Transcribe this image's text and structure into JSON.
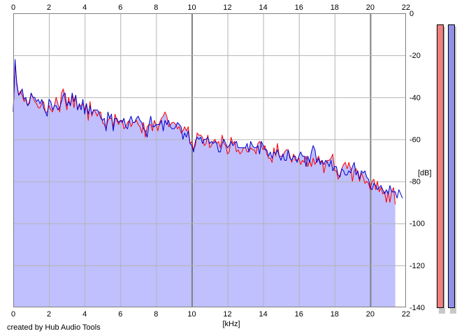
{
  "credit_text": "created by Hub Audio Tools",
  "chart_data": {
    "type": "line",
    "xlabel": "[kHz]",
    "ylabel": "[dB]",
    "xlim": [
      0,
      22
    ],
    "ylim": [
      -140,
      0
    ],
    "x_ticks": [
      0,
      2,
      4,
      6,
      8,
      10,
      12,
      14,
      16,
      18,
      20,
      22
    ],
    "y_ticks": [
      0,
      -20,
      -40,
      -60,
      -80,
      -100,
      -120,
      -140
    ],
    "grid": true,
    "fill_color": "#c0c0ff",
    "x_step_khz": 0.1,
    "series": [
      {
        "color": "#ff0000",
        "values": [
          -47,
          -24,
          -33,
          -39,
          -37,
          -39,
          -42,
          -41,
          -44,
          -42,
          -38,
          -40,
          -42,
          -43,
          -45,
          -45,
          -43,
          -42,
          -47,
          -47,
          -44,
          -46,
          -47,
          -44,
          -40,
          -43,
          -47,
          -38,
          -36,
          -41,
          -46,
          -40,
          -44,
          -39,
          -45,
          -39,
          -46,
          -44,
          -44,
          -43,
          -46,
          -43,
          -51,
          -42,
          -49,
          -46,
          -47,
          -49,
          -47,
          -47,
          -52,
          -53,
          -55,
          -51,
          -50,
          -50,
          -54,
          -48,
          -51,
          -53,
          -51,
          -51,
          -55,
          -54,
          -52,
          -51,
          -54,
          -52,
          -52,
          -51,
          -53,
          -54,
          -57,
          -52,
          -59,
          -54,
          -53,
          -53,
          -56,
          -51,
          -53,
          -56,
          -52,
          -50,
          -49,
          -47,
          -49,
          -54,
          -53,
          -52,
          -52,
          -53,
          -55,
          -54,
          -57,
          -56,
          -54,
          -56,
          -54,
          -62,
          -61,
          -65,
          -63,
          -57,
          -58,
          -58,
          -59,
          -63,
          -62,
          -58,
          -64,
          -63,
          -61,
          -60,
          -62,
          -61,
          -64,
          -58,
          -62,
          -63,
          -67,
          -66,
          -59,
          -62,
          -61,
          -66,
          -65,
          -67,
          -66,
          -64,
          -64,
          -66,
          -66,
          -64,
          -65,
          -65,
          -67,
          -62,
          -61,
          -63,
          -65,
          -63,
          -67,
          -69,
          -69,
          -71,
          -64,
          -68,
          -62,
          -68,
          -68,
          -68,
          -66,
          -65,
          -65,
          -68,
          -71,
          -67,
          -70,
          -70,
          -69,
          -72,
          -70,
          -71,
          -68,
          -73,
          -70,
          -73,
          -69,
          -72,
          -70,
          -68,
          -71,
          -70,
          -76,
          -72,
          -70,
          -70,
          -69,
          -67,
          -75,
          -75,
          -79,
          -77,
          -74,
          -72,
          -71,
          -74,
          -71,
          -74,
          -80,
          -75,
          -74,
          -76,
          -80,
          -76,
          -78,
          -81,
          -80,
          -81,
          -84,
          -80,
          -79,
          -84,
          -80,
          -85,
          -83,
          -86,
          -85,
          -90,
          -85,
          -90,
          -85,
          -83,
          -91
        ]
      },
      {
        "color": "#0000cc",
        "values": [
          -47,
          -22,
          -34,
          -39,
          -38,
          -36,
          -41,
          -40,
          -44,
          -43,
          -38,
          -40,
          -40,
          -42,
          -41,
          -43,
          -41,
          -45,
          -47,
          -49,
          -41,
          -42,
          -46,
          -44,
          -44,
          -46,
          -45,
          -42,
          -39,
          -38,
          -44,
          -42,
          -44,
          -38,
          -42,
          -39,
          -46,
          -43,
          -46,
          -41,
          -48,
          -43,
          -48,
          -44,
          -48,
          -46,
          -46,
          -46,
          -47,
          -50,
          -51,
          -50,
          -56,
          -47,
          -50,
          -48,
          -56,
          -50,
          -50,
          -52,
          -51,
          -52,
          -50,
          -54,
          -55,
          -51,
          -49,
          -52,
          -52,
          -50,
          -49,
          -51,
          -52,
          -55,
          -56,
          -59,
          -53,
          -49,
          -54,
          -54,
          -53,
          -53,
          -53,
          -51,
          -56,
          -51,
          -53,
          -51,
          -54,
          -55,
          -55,
          -54,
          -52,
          -53,
          -54,
          -60,
          -57,
          -59,
          -56,
          -62,
          -63,
          -66,
          -61,
          -59,
          -60,
          -59,
          -62,
          -60,
          -60,
          -59,
          -62,
          -61,
          -62,
          -61,
          -62,
          -66,
          -66,
          -62,
          -60,
          -62,
          -64,
          -63,
          -61,
          -63,
          -62,
          -61,
          -64,
          -64,
          -64,
          -64,
          -64,
          -62,
          -66,
          -61,
          -63,
          -64,
          -64,
          -63,
          -67,
          -61,
          -63,
          -65,
          -65,
          -68,
          -66,
          -69,
          -66,
          -67,
          -65,
          -68,
          -70,
          -67,
          -70,
          -70,
          -65,
          -69,
          -70,
          -68,
          -68,
          -71,
          -68,
          -66,
          -68,
          -68,
          -73,
          -68,
          -71,
          -66,
          -63,
          -65,
          -71,
          -69,
          -72,
          -70,
          -72,
          -70,
          -71,
          -73,
          -70,
          -75,
          -73,
          -73,
          -77,
          -78,
          -74,
          -75,
          -77,
          -77,
          -75,
          -76,
          -73,
          -71,
          -77,
          -75,
          -79,
          -75,
          -76,
          -75,
          -78,
          -79,
          -83,
          -84,
          -81,
          -82,
          -84,
          -83,
          -82,
          -84,
          -86,
          -84,
          -86,
          -82,
          -85,
          -85,
          -85,
          -88,
          -84,
          -86,
          -88
        ]
      }
    ]
  },
  "level_meters": [
    {
      "fill": "#f08080",
      "level": 1.0
    },
    {
      "fill": "#9090e8",
      "level": 1.0
    }
  ]
}
